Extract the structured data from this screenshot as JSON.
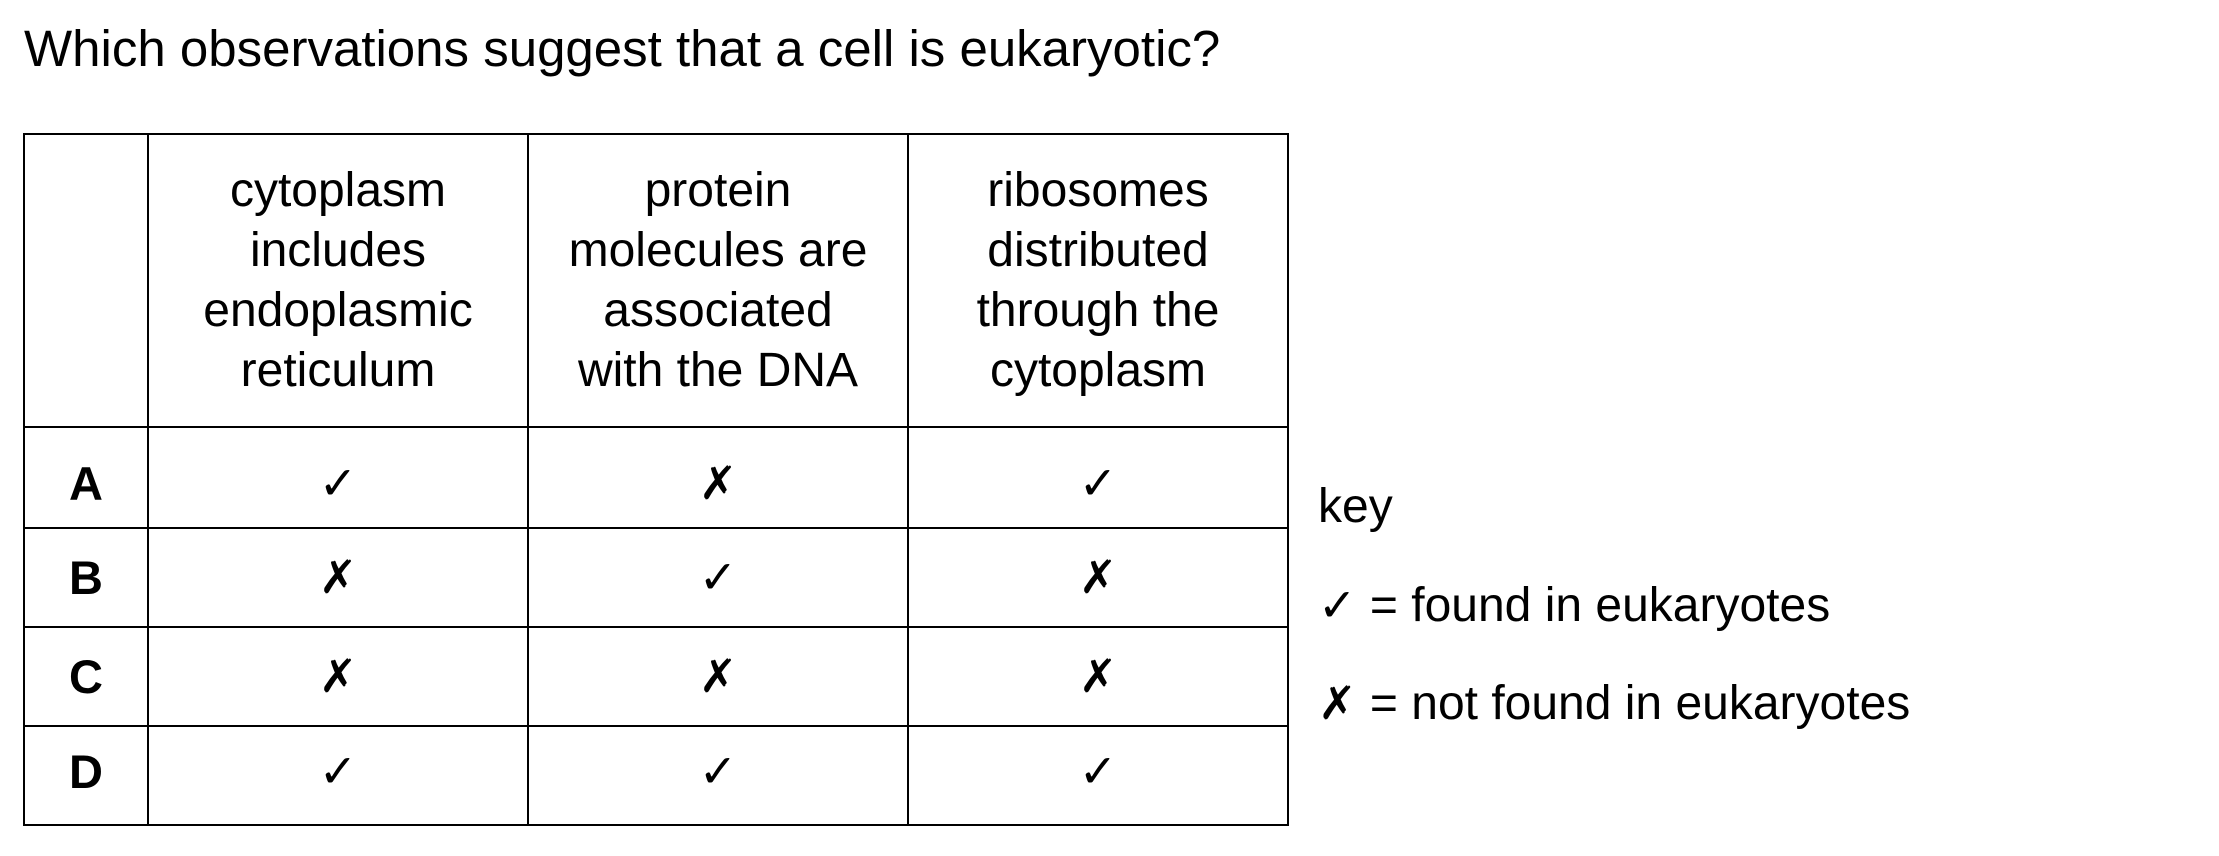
{
  "question": "Which observations suggest that a cell is eukaryotic?",
  "table": {
    "headers": [
      "",
      "cytoplasm\nincludes\nendoplasmic\nreticulum",
      "protein\nmolecules are\nassociated\nwith the DNA",
      "ribosomes\ndistributed\nthrough the\ncytoplasm"
    ],
    "rows": [
      {
        "label": "A",
        "marks": [
          "✓",
          "✗",
          "✓"
        ]
      },
      {
        "label": "B",
        "marks": [
          "✗",
          "✓",
          "✗"
        ]
      },
      {
        "label": "C",
        "marks": [
          "✗",
          "✗",
          "✗"
        ]
      },
      {
        "label": "D",
        "marks": [
          "✓",
          "✓",
          "✓"
        ]
      }
    ]
  },
  "key": {
    "title": "key",
    "found": {
      "symbol": "✓",
      "text": " = found in eukaryotes"
    },
    "not_found": {
      "symbol": "✗",
      "text": " = not found in eukaryotes"
    }
  }
}
